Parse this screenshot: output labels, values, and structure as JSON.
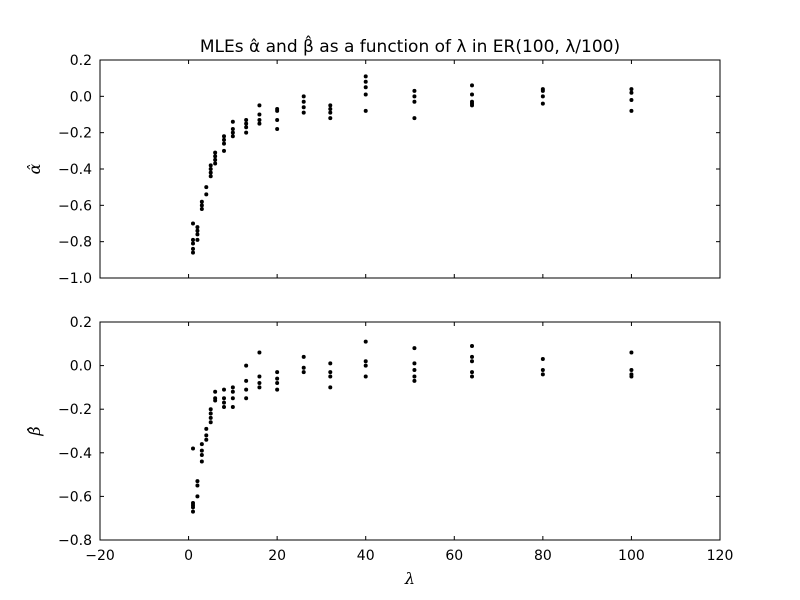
{
  "title": "MLEs α̂ and β̂ as a function of λ in ER(100, λ/100)",
  "chart_data": [
    {
      "type": "scatter",
      "ylabel": "α̂",
      "xlabel": "",
      "xlim": [
        -20,
        120
      ],
      "ylim": [
        -1.0,
        0.2
      ],
      "x_ticks": [],
      "y_ticks": [
        "−1.0",
        "−0.8",
        "−0.6",
        "−0.4",
        "−0.2",
        "0.0",
        "0.2"
      ],
      "y_tick_values": [
        -1.0,
        -0.8,
        -0.6,
        -0.4,
        -0.2,
        0.0,
        0.2
      ],
      "grid": false,
      "marker_color": "#000000",
      "points": [
        {
          "x": 1,
          "y": -0.7
        },
        {
          "x": 1,
          "y": -0.79
        },
        {
          "x": 1,
          "y": -0.81
        },
        {
          "x": 1,
          "y": -0.84
        },
        {
          "x": 1,
          "y": -0.86
        },
        {
          "x": 2,
          "y": -0.72
        },
        {
          "x": 2,
          "y": -0.74
        },
        {
          "x": 2,
          "y": -0.76
        },
        {
          "x": 2,
          "y": -0.79
        },
        {
          "x": 3,
          "y": -0.58
        },
        {
          "x": 3,
          "y": -0.6
        },
        {
          "x": 3,
          "y": -0.62
        },
        {
          "x": 4,
          "y": -0.5
        },
        {
          "x": 4,
          "y": -0.54
        },
        {
          "x": 5,
          "y": -0.38
        },
        {
          "x": 5,
          "y": -0.4
        },
        {
          "x": 5,
          "y": -0.42
        },
        {
          "x": 5,
          "y": -0.44
        },
        {
          "x": 6,
          "y": -0.31
        },
        {
          "x": 6,
          "y": -0.33
        },
        {
          "x": 6,
          "y": -0.35
        },
        {
          "x": 6,
          "y": -0.37
        },
        {
          "x": 8,
          "y": -0.22
        },
        {
          "x": 8,
          "y": -0.24
        },
        {
          "x": 8,
          "y": -0.26
        },
        {
          "x": 8,
          "y": -0.3
        },
        {
          "x": 10,
          "y": -0.14
        },
        {
          "x": 10,
          "y": -0.18
        },
        {
          "x": 10,
          "y": -0.2
        },
        {
          "x": 10,
          "y": -0.22
        },
        {
          "x": 13,
          "y": -0.13
        },
        {
          "x": 13,
          "y": -0.15
        },
        {
          "x": 13,
          "y": -0.17
        },
        {
          "x": 13,
          "y": -0.2
        },
        {
          "x": 16,
          "y": -0.05
        },
        {
          "x": 16,
          "y": -0.1
        },
        {
          "x": 16,
          "y": -0.13
        },
        {
          "x": 16,
          "y": -0.15
        },
        {
          "x": 20,
          "y": -0.07
        },
        {
          "x": 20,
          "y": -0.08
        },
        {
          "x": 20,
          "y": -0.13
        },
        {
          "x": 20,
          "y": -0.18
        },
        {
          "x": 26,
          "y": 0.0
        },
        {
          "x": 26,
          "y": -0.03
        },
        {
          "x": 26,
          "y": -0.06
        },
        {
          "x": 26,
          "y": -0.09
        },
        {
          "x": 32,
          "y": -0.05
        },
        {
          "x": 32,
          "y": -0.07
        },
        {
          "x": 32,
          "y": -0.09
        },
        {
          "x": 32,
          "y": -0.12
        },
        {
          "x": 40,
          "y": 0.11
        },
        {
          "x": 40,
          "y": 0.08
        },
        {
          "x": 40,
          "y": 0.05
        },
        {
          "x": 40,
          "y": 0.01
        },
        {
          "x": 40,
          "y": -0.08
        },
        {
          "x": 51,
          "y": 0.03
        },
        {
          "x": 51,
          "y": 0.0
        },
        {
          "x": 51,
          "y": -0.03
        },
        {
          "x": 51,
          "y": -0.12
        },
        {
          "x": 64,
          "y": 0.06
        },
        {
          "x": 64,
          "y": 0.01
        },
        {
          "x": 64,
          "y": -0.03
        },
        {
          "x": 64,
          "y": -0.04
        },
        {
          "x": 64,
          "y": -0.05
        },
        {
          "x": 80,
          "y": 0.04
        },
        {
          "x": 80,
          "y": 0.03
        },
        {
          "x": 80,
          "y": 0.0
        },
        {
          "x": 80,
          "y": -0.04
        },
        {
          "x": 100,
          "y": 0.04
        },
        {
          "x": 100,
          "y": 0.02
        },
        {
          "x": 100,
          "y": -0.02
        },
        {
          "x": 100,
          "y": -0.08
        }
      ]
    },
    {
      "type": "scatter",
      "ylabel": "β̂",
      "xlabel": "λ",
      "xlim": [
        -20,
        120
      ],
      "ylim": [
        -0.8,
        0.2
      ],
      "x_ticks": [
        "−20",
        "0",
        "20",
        "40",
        "60",
        "80",
        "100",
        "120"
      ],
      "x_tick_values": [
        -20,
        0,
        20,
        40,
        60,
        80,
        100,
        120
      ],
      "y_ticks": [
        "−0.8",
        "−0.6",
        "−0.4",
        "−0.2",
        "0.0",
        "0.2"
      ],
      "y_tick_values": [
        -0.8,
        -0.6,
        -0.4,
        -0.2,
        0.0,
        0.2
      ],
      "grid": false,
      "marker_color": "#000000",
      "points": [
        {
          "x": 1,
          "y": -0.38
        },
        {
          "x": 1,
          "y": -0.63
        },
        {
          "x": 1,
          "y": -0.64
        },
        {
          "x": 1,
          "y": -0.65
        },
        {
          "x": 1,
          "y": -0.67
        },
        {
          "x": 2,
          "y": -0.53
        },
        {
          "x": 2,
          "y": -0.55
        },
        {
          "x": 2,
          "y": -0.6
        },
        {
          "x": 3,
          "y": -0.36
        },
        {
          "x": 3,
          "y": -0.39
        },
        {
          "x": 3,
          "y": -0.41
        },
        {
          "x": 3,
          "y": -0.44
        },
        {
          "x": 4,
          "y": -0.29
        },
        {
          "x": 4,
          "y": -0.32
        },
        {
          "x": 4,
          "y": -0.34
        },
        {
          "x": 5,
          "y": -0.2
        },
        {
          "x": 5,
          "y": -0.22
        },
        {
          "x": 5,
          "y": -0.24
        },
        {
          "x": 5,
          "y": -0.26
        },
        {
          "x": 6,
          "y": -0.12
        },
        {
          "x": 6,
          "y": -0.15
        },
        {
          "x": 6,
          "y": -0.16
        },
        {
          "x": 8,
          "y": -0.11
        },
        {
          "x": 8,
          "y": -0.15
        },
        {
          "x": 8,
          "y": -0.17
        },
        {
          "x": 8,
          "y": -0.19
        },
        {
          "x": 10,
          "y": -0.1
        },
        {
          "x": 10,
          "y": -0.12
        },
        {
          "x": 10,
          "y": -0.15
        },
        {
          "x": 10,
          "y": -0.19
        },
        {
          "x": 13,
          "y": 0.0
        },
        {
          "x": 13,
          "y": -0.07
        },
        {
          "x": 13,
          "y": -0.11
        },
        {
          "x": 13,
          "y": -0.15
        },
        {
          "x": 16,
          "y": 0.06
        },
        {
          "x": 16,
          "y": -0.05
        },
        {
          "x": 16,
          "y": -0.08
        },
        {
          "x": 16,
          "y": -0.1
        },
        {
          "x": 20,
          "y": -0.03
        },
        {
          "x": 20,
          "y": -0.06
        },
        {
          "x": 20,
          "y": -0.08
        },
        {
          "x": 20,
          "y": -0.11
        },
        {
          "x": 26,
          "y": 0.04
        },
        {
          "x": 26,
          "y": -0.01
        },
        {
          "x": 26,
          "y": -0.03
        },
        {
          "x": 32,
          "y": 0.01
        },
        {
          "x": 32,
          "y": -0.03
        },
        {
          "x": 32,
          "y": -0.05
        },
        {
          "x": 32,
          "y": -0.1
        },
        {
          "x": 40,
          "y": 0.11
        },
        {
          "x": 40,
          "y": 0.02
        },
        {
          "x": 40,
          "y": 0.0
        },
        {
          "x": 40,
          "y": -0.05
        },
        {
          "x": 51,
          "y": 0.08
        },
        {
          "x": 51,
          "y": 0.01
        },
        {
          "x": 51,
          "y": -0.02
        },
        {
          "x": 51,
          "y": -0.05
        },
        {
          "x": 51,
          "y": -0.07
        },
        {
          "x": 64,
          "y": 0.09
        },
        {
          "x": 64,
          "y": 0.04
        },
        {
          "x": 64,
          "y": 0.02
        },
        {
          "x": 64,
          "y": -0.03
        },
        {
          "x": 64,
          "y": -0.05
        },
        {
          "x": 80,
          "y": 0.03
        },
        {
          "x": 80,
          "y": -0.02
        },
        {
          "x": 80,
          "y": -0.04
        },
        {
          "x": 100,
          "y": 0.06
        },
        {
          "x": 100,
          "y": -0.02
        },
        {
          "x": 100,
          "y": -0.04
        },
        {
          "x": 100,
          "y": -0.05
        }
      ]
    }
  ]
}
